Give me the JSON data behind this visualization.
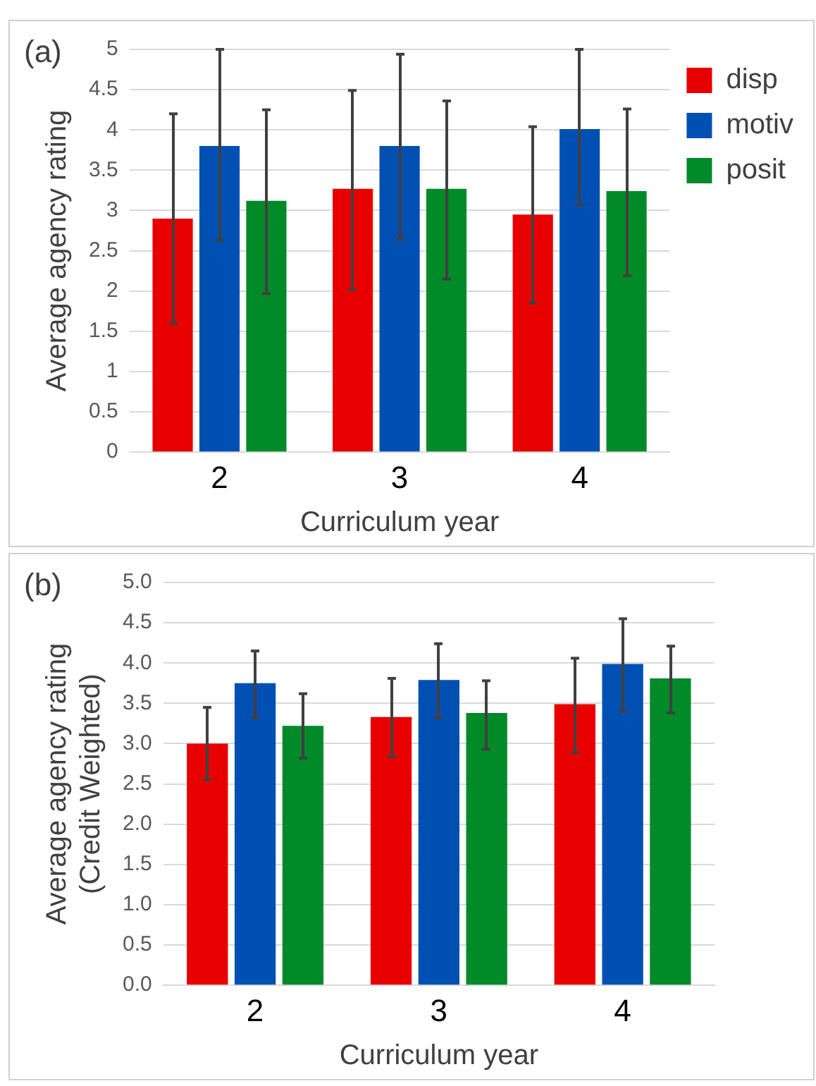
{
  "chart_data": [
    {
      "type": "bar",
      "annotations": [
        "(a)"
      ],
      "xlabel": "Curriculum year",
      "ylabel": "Average agency rating",
      "categories": [
        "2",
        "3",
        "4"
      ],
      "series": [
        {
          "name": "disp",
          "color": "#e80000",
          "values": [
            2.9,
            3.27,
            2.95
          ],
          "errors": [
            [
              1.6,
              4.2
            ],
            [
              2.02,
              4.49
            ],
            [
              1.85,
              4.04
            ]
          ]
        },
        {
          "name": "motiv",
          "color": "#0050b4",
          "values": [
            3.8,
            3.8,
            4.01
          ],
          "errors": [
            [
              2.63,
              5.0
            ],
            [
              2.64,
              4.94
            ],
            [
              3.07,
              5.0
            ]
          ]
        },
        {
          "name": "posit",
          "color": "#008a28",
          "values": [
            3.12,
            3.27,
            3.24
          ],
          "errors": [
            [
              1.97,
              4.25
            ],
            [
              2.15,
              4.36
            ],
            [
              2.19,
              4.26
            ]
          ]
        }
      ],
      "ylim": [
        0,
        5
      ],
      "yticks": [
        0,
        0.5,
        1,
        1.5,
        2,
        2.5,
        3,
        3.5,
        4,
        4.5,
        5
      ],
      "grid": "y",
      "legend": "top right"
    },
    {
      "type": "bar",
      "annotations": [
        "(b)"
      ],
      "xlabel": "Curriculum year",
      "ylabel": "Average agency rating\n(Credit Weighted)",
      "categories": [
        "2",
        "3",
        "4"
      ],
      "series": [
        {
          "color": "#e80000",
          "values": [
            3.0,
            3.33,
            3.49
          ],
          "errors": [
            [
              2.55,
              3.45
            ],
            [
              2.84,
              3.81
            ],
            [
              2.89,
              4.06
            ]
          ]
        },
        {
          "color": "#0050b4",
          "values": [
            3.75,
            3.79,
            3.99
          ],
          "errors": [
            [
              3.32,
              4.15
            ],
            [
              3.32,
              4.24
            ],
            [
              3.4,
              4.55
            ]
          ]
        },
        {
          "color": "#008a28",
          "values": [
            3.22,
            3.38,
            3.81
          ],
          "errors": [
            [
              2.82,
              3.62
            ],
            [
              2.93,
              3.78
            ],
            [
              3.38,
              4.21
            ]
          ]
        }
      ],
      "ylim": [
        0,
        5
      ],
      "yticks": [
        {
          "value": 0,
          "label": "0.0"
        },
        {
          "value": 0.5,
          "label": "0.5"
        },
        {
          "value": 1,
          "label": "1.0"
        },
        {
          "value": 1.5,
          "label": "1.5"
        },
        {
          "value": 2,
          "label": "2.0"
        },
        {
          "value": 2.5,
          "label": "2.5"
        },
        {
          "value": 3,
          "label": "3.0"
        },
        {
          "value": 3.5,
          "label": "3.5"
        },
        {
          "value": 4,
          "label": "4.0"
        },
        {
          "value": 4.5,
          "label": "4.5"
        },
        {
          "value": 5,
          "label": "5.0"
        }
      ],
      "grid": "y"
    }
  ]
}
